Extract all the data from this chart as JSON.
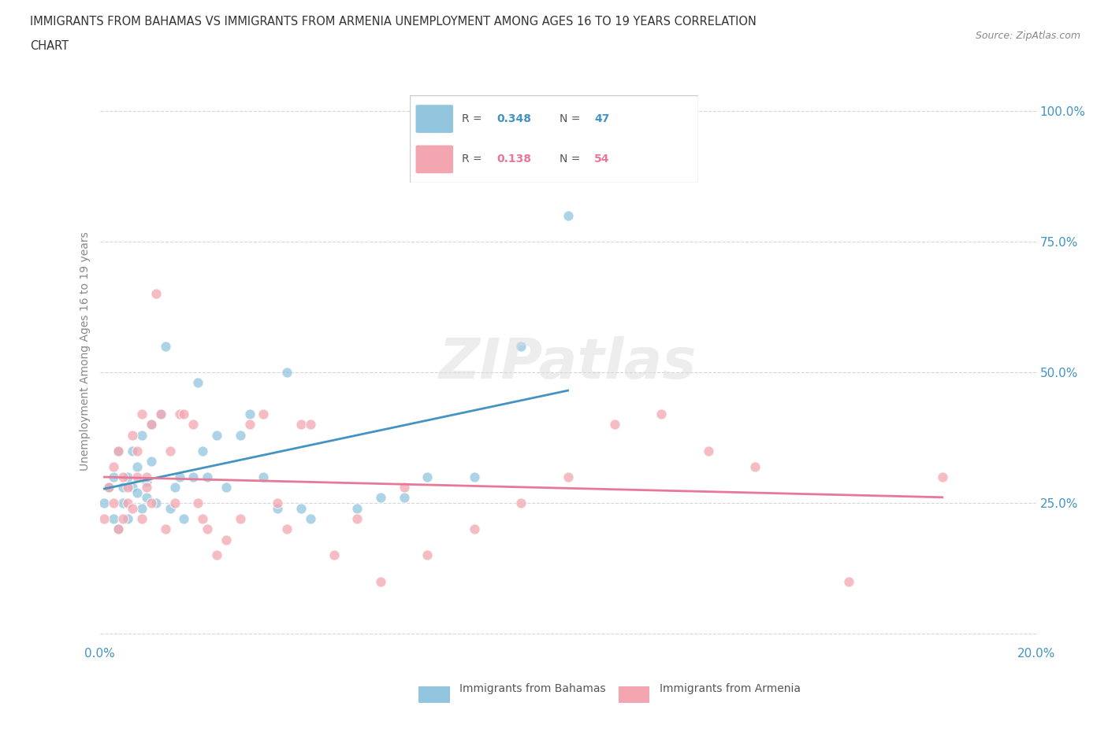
{
  "title_line1": "IMMIGRANTS FROM BAHAMAS VS IMMIGRANTS FROM ARMENIA UNEMPLOYMENT AMONG AGES 16 TO 19 YEARS CORRELATION",
  "title_line2": "CHART",
  "source": "Source: ZipAtlas.com",
  "ylabel": "Unemployment Among Ages 16 to 19 years",
  "xlim": [
    0.0,
    0.2
  ],
  "ylim": [
    -0.02,
    1.1
  ],
  "yticks": [
    0.0,
    0.25,
    0.5,
    0.75,
    1.0
  ],
  "ytick_labels": [
    "",
    "25.0%",
    "50.0%",
    "75.0%",
    "100.0%"
  ],
  "bahamas_R": 0.348,
  "bahamas_N": 47,
  "armenia_R": 0.138,
  "armenia_N": 54,
  "bahamas_color": "#92c5de",
  "armenia_color": "#f4a6b0",
  "bahamas_line_color": "#4393c3",
  "armenia_line_color": "#e87898",
  "bahamas_x": [
    0.001,
    0.002,
    0.003,
    0.003,
    0.004,
    0.004,
    0.005,
    0.005,
    0.006,
    0.006,
    0.007,
    0.007,
    0.008,
    0.008,
    0.009,
    0.009,
    0.01,
    0.01,
    0.011,
    0.011,
    0.012,
    0.013,
    0.014,
    0.015,
    0.016,
    0.017,
    0.018,
    0.02,
    0.021,
    0.022,
    0.023,
    0.025,
    0.027,
    0.03,
    0.032,
    0.035,
    0.038,
    0.04,
    0.043,
    0.045,
    0.055,
    0.06,
    0.065,
    0.07,
    0.08,
    0.09,
    0.1
  ],
  "bahamas_y": [
    0.25,
    0.28,
    0.22,
    0.3,
    0.35,
    0.2,
    0.25,
    0.28,
    0.3,
    0.22,
    0.35,
    0.28,
    0.27,
    0.32,
    0.38,
    0.24,
    0.26,
    0.29,
    0.4,
    0.33,
    0.25,
    0.42,
    0.55,
    0.24,
    0.28,
    0.3,
    0.22,
    0.3,
    0.48,
    0.35,
    0.3,
    0.38,
    0.28,
    0.38,
    0.42,
    0.3,
    0.24,
    0.5,
    0.24,
    0.22,
    0.24,
    0.26,
    0.26,
    0.3,
    0.3,
    0.55,
    0.8
  ],
  "armenia_x": [
    0.001,
    0.002,
    0.003,
    0.003,
    0.004,
    0.004,
    0.005,
    0.005,
    0.006,
    0.006,
    0.007,
    0.007,
    0.008,
    0.008,
    0.009,
    0.009,
    0.01,
    0.01,
    0.011,
    0.011,
    0.012,
    0.013,
    0.014,
    0.015,
    0.016,
    0.017,
    0.018,
    0.02,
    0.021,
    0.022,
    0.023,
    0.025,
    0.027,
    0.03,
    0.032,
    0.035,
    0.038,
    0.04,
    0.043,
    0.045,
    0.05,
    0.055,
    0.06,
    0.065,
    0.07,
    0.08,
    0.09,
    0.1,
    0.11,
    0.12,
    0.13,
    0.14,
    0.16,
    0.18
  ],
  "armenia_y": [
    0.22,
    0.28,
    0.25,
    0.32,
    0.2,
    0.35,
    0.22,
    0.3,
    0.28,
    0.25,
    0.38,
    0.24,
    0.3,
    0.35,
    0.42,
    0.22,
    0.28,
    0.3,
    0.25,
    0.4,
    0.65,
    0.42,
    0.2,
    0.35,
    0.25,
    0.42,
    0.42,
    0.4,
    0.25,
    0.22,
    0.2,
    0.15,
    0.18,
    0.22,
    0.4,
    0.42,
    0.25,
    0.2,
    0.4,
    0.4,
    0.15,
    0.22,
    0.1,
    0.28,
    0.15,
    0.2,
    0.25,
    0.3,
    0.4,
    0.42,
    0.35,
    0.32,
    0.1,
    0.3
  ]
}
